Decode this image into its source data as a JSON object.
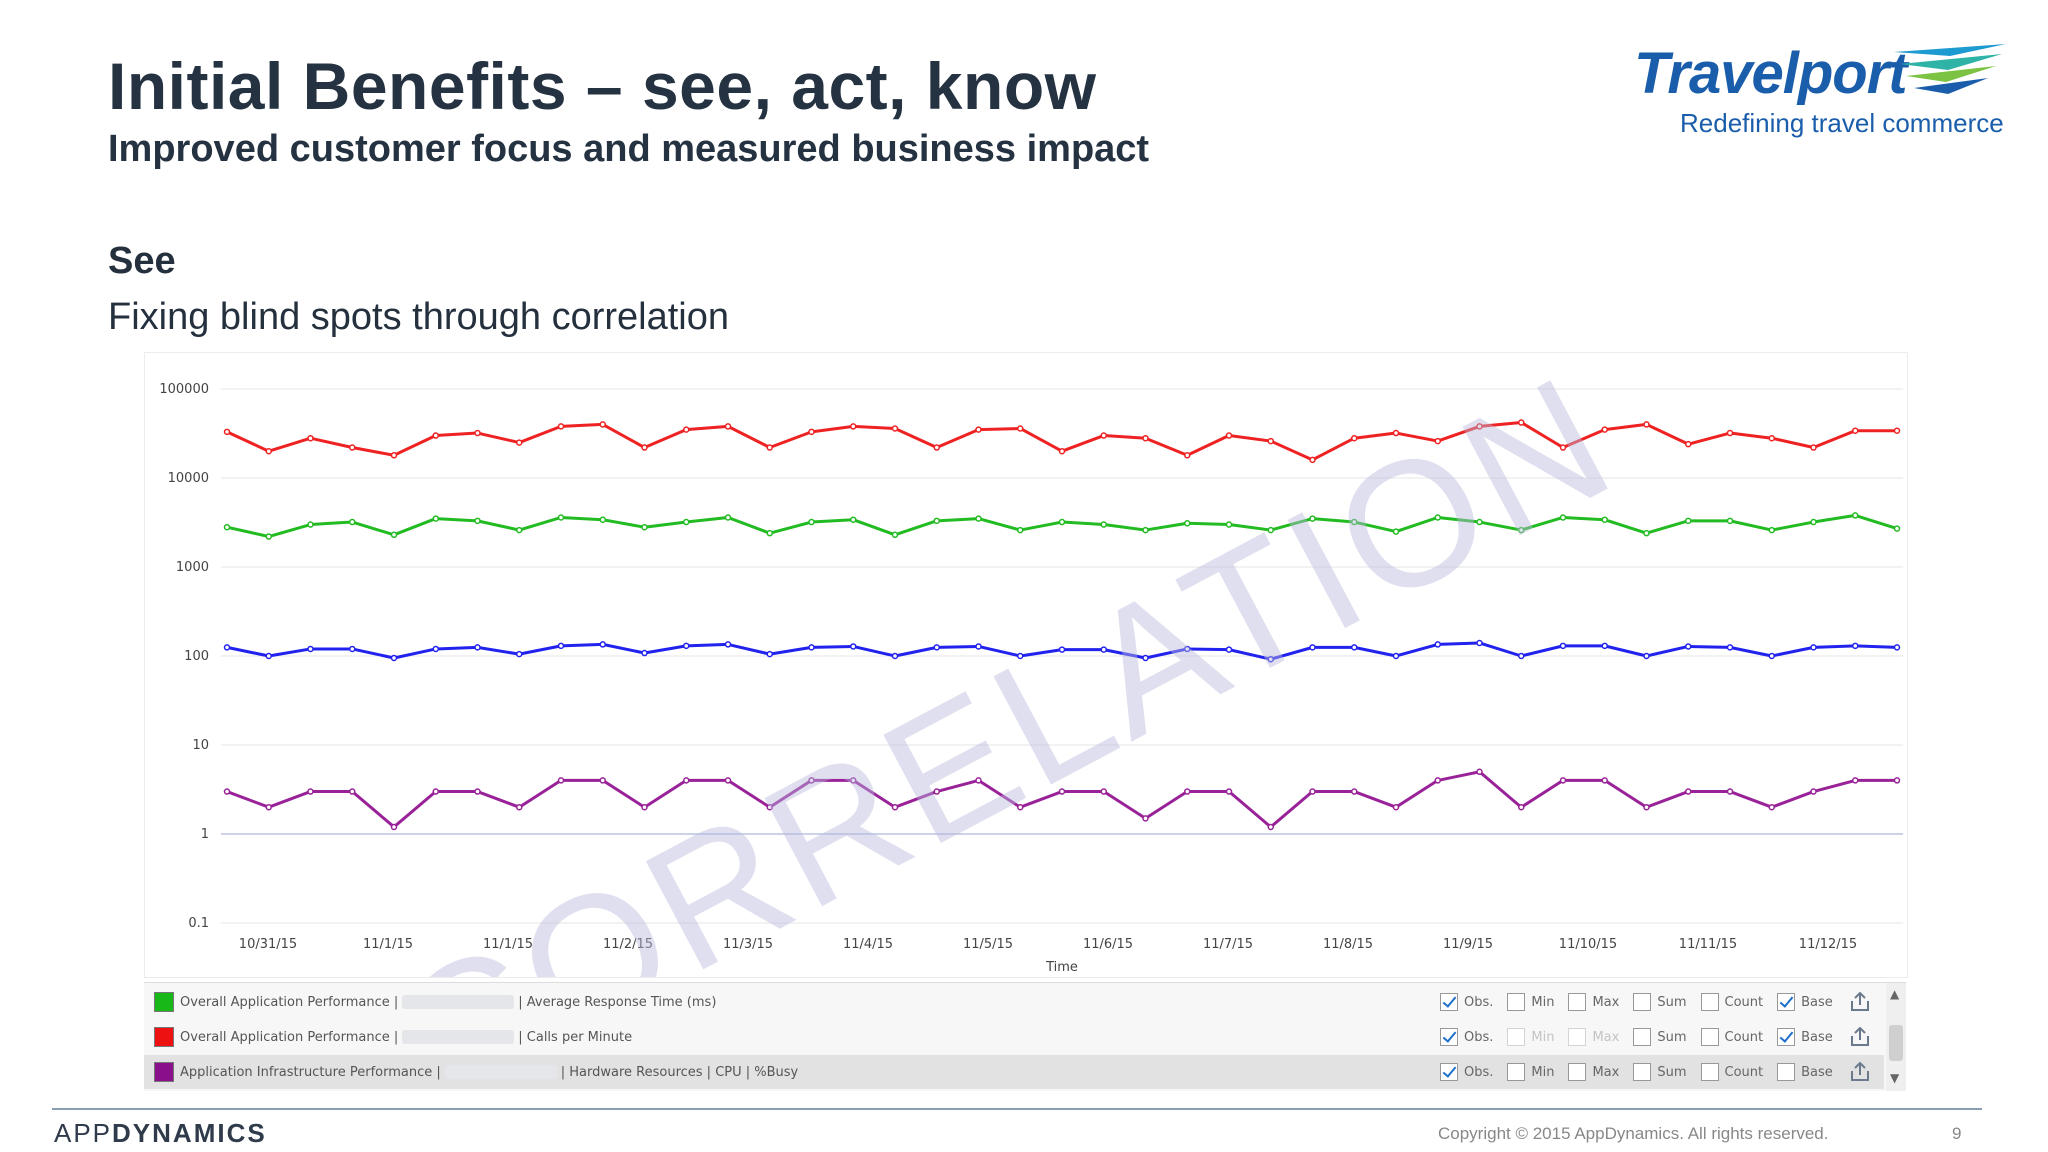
{
  "slide": {
    "title": "Initial Benefits – see, act, know",
    "subtitle": "Improved customer focus and measured business impact",
    "section_heading": "See",
    "section_text": "Fixing blind spots through correlation"
  },
  "brand": {
    "logo_name": "Travelport",
    "logo_tagline": "Redefining travel commerce",
    "logo_color": "#1a5eab"
  },
  "chart_data": {
    "type": "line",
    "watermark": "CORRELATION",
    "xlabel": "Time",
    "ylabel": "",
    "yscale": "log",
    "ylim": [
      0.1,
      100000
    ],
    "y_ticks": [
      "100000",
      "10000",
      "1000",
      "100",
      "10",
      "1",
      "0.1"
    ],
    "x_ticks": [
      "10/31/15",
      "11/1/15",
      "11/1/15",
      "11/2/15",
      "11/3/15",
      "11/4/15",
      "11/5/15",
      "11/6/15",
      "11/7/15",
      "11/8/15",
      "11/9/15",
      "11/10/15",
      "11/11/15",
      "11/12/15"
    ],
    "grid": true,
    "series": [
      {
        "color": "#ee2222",
        "values": [
          33000,
          20000,
          28000,
          22000,
          18000,
          30000,
          32000,
          25000,
          38000,
          40000,
          22000,
          35000,
          38000,
          22000,
          33000,
          38000,
          36000,
          22000,
          35000,
          36000,
          20000,
          30000,
          28000,
          18000,
          30000,
          26000,
          16000,
          28000,
          32000,
          26000,
          38000,
          42000,
          22000,
          35000,
          40000,
          24000,
          32000,
          28000,
          22000,
          34000,
          34000
        ]
      },
      {
        "color": "#22bb22",
        "values": [
          2800,
          2200,
          3000,
          3200,
          2300,
          3500,
          3300,
          2600,
          3600,
          3400,
          2800,
          3200,
          3600,
          2400,
          3200,
          3400,
          2300,
          3300,
          3500,
          2600,
          3200,
          3000,
          2600,
          3100,
          3000,
          2600,
          3500,
          3200,
          2500,
          3600,
          3200,
          2600,
          3600,
          3400,
          2400,
          3300,
          3300,
          2600,
          3200,
          3800,
          2700
        ]
      },
      {
        "color": "#2222ee",
        "values": [
          125,
          100,
          120,
          120,
          95,
          120,
          125,
          105,
          130,
          135,
          108,
          130,
          135,
          105,
          125,
          128,
          100,
          125,
          128,
          100,
          118,
          118,
          95,
          120,
          118,
          92,
          125,
          125,
          100,
          135,
          140,
          100,
          130,
          130,
          100,
          128,
          125,
          100,
          125,
          130,
          125
        ]
      },
      {
        "color": "#992299",
        "values": [
          3,
          2,
          3,
          3,
          1.2,
          3,
          3,
          2,
          4,
          4,
          2,
          4,
          4,
          2,
          4,
          4,
          2,
          3,
          4,
          2,
          3,
          3,
          1.5,
          3,
          3,
          1.2,
          3,
          3,
          2,
          4,
          5,
          2,
          4,
          4,
          2,
          3,
          3,
          2,
          3,
          4,
          4
        ]
      }
    ]
  },
  "legend": {
    "rows": [
      {
        "color": "#18b818",
        "prefix": "Overall Application Performance |",
        "suffix": "| Average Response Time (ms)",
        "options": [
          {
            "label": "Obs.",
            "checked": true,
            "faded": false
          },
          {
            "label": "Min",
            "checked": false,
            "faded": false
          },
          {
            "label": "Max",
            "checked": false,
            "faded": false
          },
          {
            "label": "Sum",
            "checked": false,
            "faded": false
          },
          {
            "label": "Count",
            "checked": false,
            "faded": false
          },
          {
            "label": "Base",
            "checked": true,
            "faded": false
          }
        ]
      },
      {
        "color": "#ee1111",
        "prefix": "Overall Application Performance |",
        "suffix": "| Calls per Minute",
        "options": [
          {
            "label": "Obs.",
            "checked": true,
            "faded": false
          },
          {
            "label": "Min",
            "checked": false,
            "faded": true
          },
          {
            "label": "Max",
            "checked": false,
            "faded": true
          },
          {
            "label": "Sum",
            "checked": false,
            "faded": false
          },
          {
            "label": "Count",
            "checked": false,
            "faded": false
          },
          {
            "label": "Base",
            "checked": true,
            "faded": false
          }
        ]
      },
      {
        "color": "#8a0f8a",
        "prefix": "Application Infrastructure Performance |",
        "suffix": "| Hardware Resources | CPU | %Busy",
        "options": [
          {
            "label": "Obs.",
            "checked": true,
            "faded": false
          },
          {
            "label": "Min",
            "checked": false,
            "faded": false
          },
          {
            "label": "Max",
            "checked": false,
            "faded": false
          },
          {
            "label": "Sum",
            "checked": false,
            "faded": false
          },
          {
            "label": "Count",
            "checked": false,
            "faded": false
          },
          {
            "label": "Base",
            "checked": false,
            "faded": false
          }
        ]
      }
    ]
  },
  "footer": {
    "logo_light": "APP",
    "logo_bold": "DYNAMICS",
    "copyright": "Copyright © 2015 AppDynamics. All rights reserved.",
    "page_number": "9"
  }
}
